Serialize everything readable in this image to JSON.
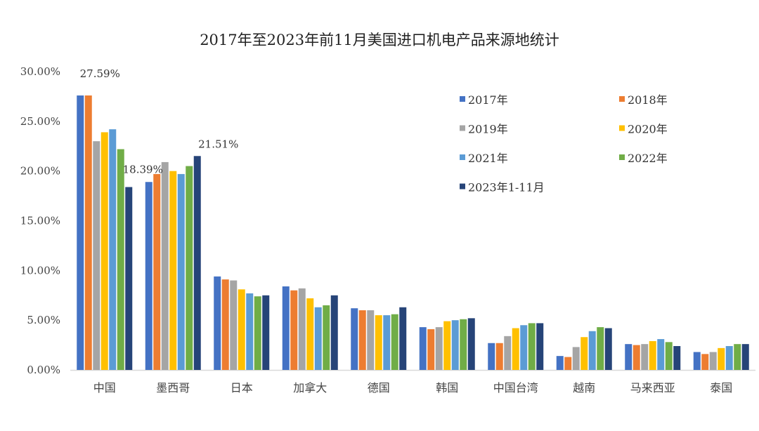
{
  "chart_data": {
    "type": "bar",
    "title": "2017年至2023年前11月美国进口机电产品来源地统计",
    "xlabel": "",
    "ylabel": "",
    "ylim": [
      0,
      30
    ],
    "yticks": [
      "0.00%",
      "5.00%",
      "10.00%",
      "15.00%",
      "20.00%",
      "25.00%",
      "30.00%"
    ],
    "ytick_values": [
      0,
      5,
      10,
      15,
      20,
      25,
      30
    ],
    "grid": false,
    "legend_position": "top-right",
    "categories": [
      "中国",
      "墨西哥",
      "日本",
      "加拿大",
      "德国",
      "韩国",
      "中国台湾",
      "越南",
      "马来西亚",
      "泰国"
    ],
    "series": [
      {
        "name": "2017年",
        "color": "#4472C4",
        "values": [
          27.6,
          18.9,
          9.4,
          8.4,
          6.2,
          4.3,
          2.7,
          1.4,
          2.6,
          1.8
        ]
      },
      {
        "name": "2018年",
        "color": "#ED7D31",
        "values": [
          27.6,
          19.7,
          9.1,
          8.0,
          6.0,
          4.1,
          2.7,
          1.3,
          2.5,
          1.6
        ]
      },
      {
        "name": "2019年",
        "color": "#A5A5A5",
        "values": [
          23.0,
          20.9,
          9.0,
          8.2,
          6.0,
          4.3,
          3.4,
          2.3,
          2.6,
          1.8
        ]
      },
      {
        "name": "2020年",
        "color": "#FFC000",
        "values": [
          23.9,
          20.0,
          8.1,
          7.2,
          5.5,
          4.9,
          4.2,
          3.3,
          2.9,
          2.2
        ]
      },
      {
        "name": "2021年",
        "color": "#5B9BD5",
        "values": [
          24.2,
          19.7,
          7.7,
          6.3,
          5.5,
          5.0,
          4.5,
          3.9,
          3.1,
          2.4
        ]
      },
      {
        "name": "2022年",
        "color": "#70AD47",
        "values": [
          22.2,
          20.5,
          7.4,
          6.5,
          5.6,
          5.1,
          4.7,
          4.3,
          2.8,
          2.6
        ]
      },
      {
        "name": "2023年1-11月",
        "color": "#264478",
        "values": [
          18.39,
          21.51,
          7.5,
          7.5,
          6.3,
          5.2,
          4.7,
          4.2,
          2.4,
          2.6
        ]
      }
    ],
    "annotations": [
      {
        "text": "27.59%",
        "category": "中国",
        "series": "2017年"
      },
      {
        "text": "18.39%",
        "category": "中国",
        "series": "2023年1-11月"
      },
      {
        "text": "21.51%",
        "category": "墨西哥",
        "series": "2023年1-11月"
      }
    ]
  }
}
